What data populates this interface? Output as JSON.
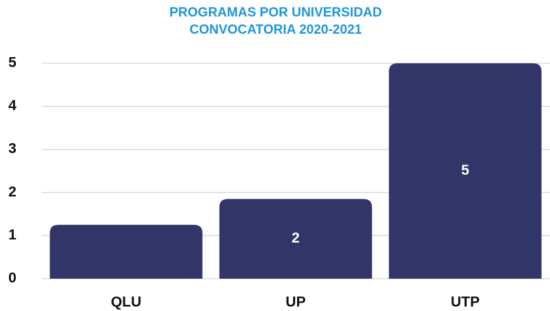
{
  "chart_data": {
    "type": "bar",
    "title": "PROGRAMAS POR UNIVERSIDAD",
    "subtitle": "CONVOCATORIA 2020-2021",
    "categories": [
      "QLU",
      "UP",
      "UTP"
    ],
    "values": [
      1.25,
      1.85,
      5
    ],
    "value_labels": [
      null,
      "2",
      "5"
    ],
    "color": "#313567",
    "ylim": [
      0,
      5
    ],
    "yticks": [
      0,
      1,
      2,
      3,
      4,
      5
    ],
    "grid": true
  }
}
